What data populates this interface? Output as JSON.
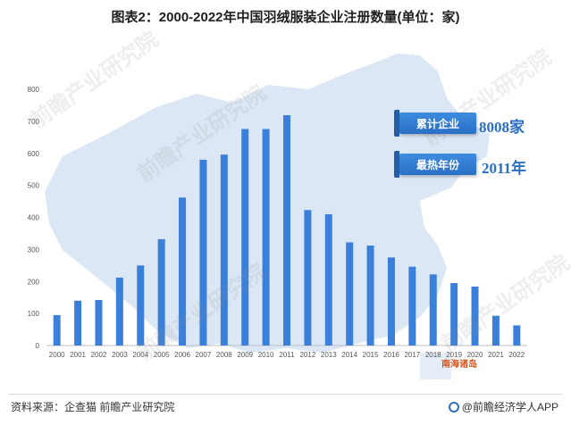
{
  "title": "图表2：2000-2022年中国羽绒服装企业注册数量(单位：家)",
  "chart_data": {
    "type": "bar",
    "categories": [
      "2000",
      "2001",
      "2002",
      "2003",
      "2004",
      "2005",
      "2006",
      "2007",
      "2008",
      "2009",
      "2010",
      "2011",
      "2012",
      "2013",
      "2014",
      "2015",
      "2016",
      "2017",
      "2018",
      "2019",
      "2020",
      "2021",
      "2022"
    ],
    "values": [
      95,
      140,
      142,
      212,
      250,
      332,
      462,
      580,
      596,
      676,
      676,
      719,
      423,
      410,
      322,
      312,
      275,
      246,
      222,
      195,
      184,
      93,
      63
    ],
    "yticks": [
      0,
      100,
      200,
      300,
      400,
      500,
      600,
      700,
      800
    ],
    "ylim": [
      0,
      800
    ],
    "bar_color": "#3a7fd9",
    "grid": false
  },
  "callouts": [
    {
      "label": "累计企业",
      "value": "8008家"
    },
    {
      "label": "最热年份",
      "value": "2011年"
    }
  ],
  "map_label": "南海诸岛",
  "source": "资料来源：企查猫 前瞻产业研究院",
  "brand": "@前瞻经济学人APP",
  "watermark": "前瞻产业研究院"
}
